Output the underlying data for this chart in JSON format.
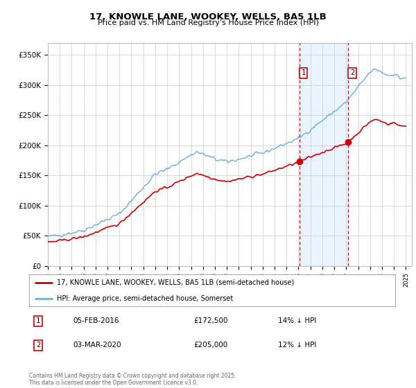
{
  "title": "17, KNOWLE LANE, WOOKEY, WELLS, BA5 1LB",
  "subtitle": "Price paid vs. HM Land Registry's House Price Index (HPI)",
  "ylim": [
    0,
    370000
  ],
  "yticks": [
    0,
    50000,
    100000,
    150000,
    200000,
    250000,
    300000,
    350000
  ],
  "ytick_labels": [
    "£0",
    "£50K",
    "£100K",
    "£150K",
    "£200K",
    "£250K",
    "£300K",
    "£350K"
  ],
  "hpi_line_color": "#6baed6",
  "price_color": "#cc0000",
  "marker_color": "#cc0000",
  "sale1_date": "05-FEB-2016",
  "sale1_price": 172500,
  "sale1_year": 2016.09,
  "sale2_date": "03-MAR-2020",
  "sale2_price": 205000,
  "sale2_year": 2020.17,
  "footnote": "Contains HM Land Registry data © Crown copyright and database right 2025.\nThis data is licensed under the Open Government Licence v3.0.",
  "legend1": "17, KNOWLE LANE, WOOKEY, WELLS, BA5 1LB (semi-detached house)",
  "legend2": "HPI: Average price, semi-detached house, Somerset",
  "background_color": "#ffffff",
  "plot_bg_color": "#ffffff",
  "grid_color": "#cccccc",
  "vline_color": "#cc0000",
  "shade_color": "#ddeeff",
  "sale1_pct": "14% ↓ HPI",
  "sale2_pct": "12% ↓ HPI"
}
